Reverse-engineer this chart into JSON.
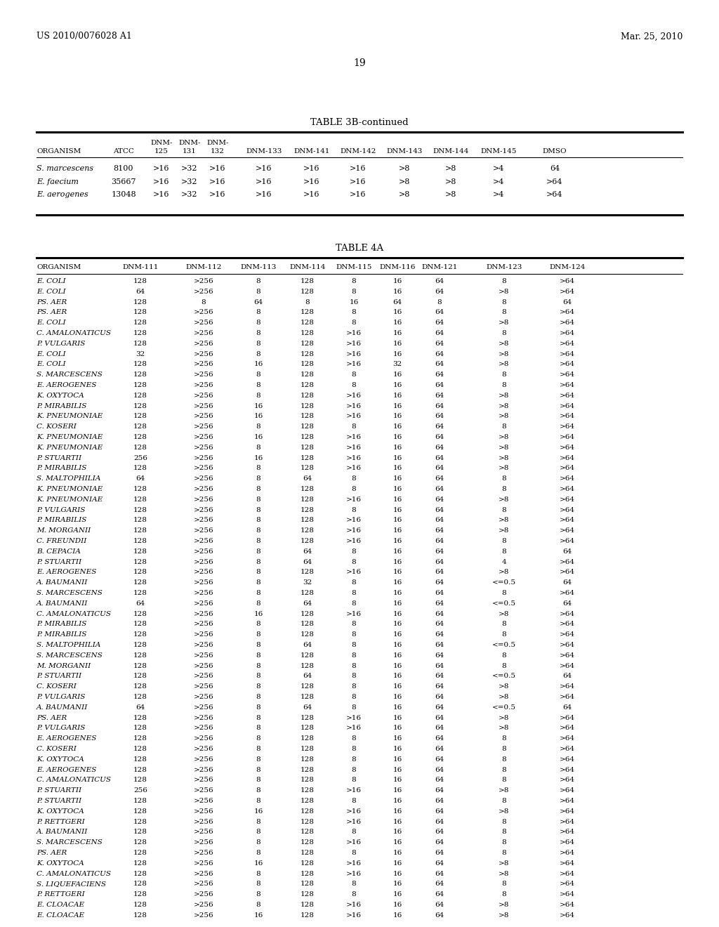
{
  "header_left": "US 2010/0076028 A1",
  "header_right": "Mar. 25, 2010",
  "page_number": "19",
  "table3b_title": "TABLE 3B-continued",
  "table3b_rows": [
    [
      "S. marcescens",
      "8100",
      ">16",
      ">32",
      ">16",
      ">16",
      ">16",
      ">16",
      ">8",
      ">8",
      ">4",
      "64"
    ],
    [
      "E. faecium",
      "35667",
      ">16",
      ">32",
      ">16",
      ">16",
      ">16",
      ">16",
      ">8",
      ">8",
      ">4",
      ">64"
    ],
    [
      "E. aerogenes",
      "13048",
      ">16",
      ">32",
      ">16",
      ">16",
      ">16",
      ">16",
      ">8",
      ">8",
      ">4",
      ">64"
    ]
  ],
  "table4a_title": "TABLE 4A",
  "table4a_col_headers": [
    "ORGANISM",
    "DNM-111",
    "DNM-112",
    "DNM-113",
    "DNM-114",
    "DNM-115",
    "DNM-116",
    "DNM-121",
    "DNM-123",
    "DNM-124"
  ],
  "table4a_rows": [
    [
      "E. COLI",
      "128",
      ">256",
      "8",
      "128",
      "8",
      "16",
      "64",
      "8",
      ">64"
    ],
    [
      "E. COLI",
      "64",
      ">256",
      "8",
      "128",
      "8",
      "16",
      "64",
      ">8",
      ">64"
    ],
    [
      "PS. AER",
      "128",
      "8",
      "64",
      "8",
      "16",
      "64",
      "8",
      "8",
      "64"
    ],
    [
      "PS. AER",
      "128",
      ">256",
      "8",
      "128",
      "8",
      "16",
      "64",
      "8",
      ">64"
    ],
    [
      "E. COLI",
      "128",
      ">256",
      "8",
      "128",
      "8",
      "16",
      "64",
      ">8",
      ">64"
    ],
    [
      "C. AMALONATICUS",
      "128",
      ">256",
      "8",
      "128",
      ">16",
      "16",
      "64",
      "8",
      ">64"
    ],
    [
      "P. VULGARIS",
      "128",
      ">256",
      "8",
      "128",
      ">16",
      "16",
      "64",
      ">8",
      ">64"
    ],
    [
      "E. COLI",
      "32",
      ">256",
      "8",
      "128",
      ">16",
      "16",
      "64",
      ">8",
      ">64"
    ],
    [
      "E. COLI",
      "128",
      ">256",
      "16",
      "128",
      ">16",
      "32",
      "64",
      ">8",
      ">64"
    ],
    [
      "S. MARCESCENS",
      "128",
      ">256",
      "8",
      "128",
      "8",
      "16",
      "64",
      "8",
      ">64"
    ],
    [
      "E. AEROGENES",
      "128",
      ">256",
      "8",
      "128",
      "8",
      "16",
      "64",
      "8",
      ">64"
    ],
    [
      "K. OXYTOCA",
      "128",
      ">256",
      "8",
      "128",
      ">16",
      "16",
      "64",
      ">8",
      ">64"
    ],
    [
      "P. MIRABILIS",
      "128",
      ">256",
      "16",
      "128",
      ">16",
      "16",
      "64",
      ">8",
      ">64"
    ],
    [
      "K. PNEUMONIAE",
      "128",
      ">256",
      "16",
      "128",
      ">16",
      "16",
      "64",
      ">8",
      ">64"
    ],
    [
      "C. KOSERI",
      "128",
      ">256",
      "8",
      "128",
      "8",
      "16",
      "64",
      "8",
      ">64"
    ],
    [
      "K. PNEUMONIAE",
      "128",
      ">256",
      "16",
      "128",
      ">16",
      "16",
      "64",
      ">8",
      ">64"
    ],
    [
      "K. PNEUMONIAE",
      "128",
      ">256",
      "8",
      "128",
      ">16",
      "16",
      "64",
      ">8",
      ">64"
    ],
    [
      "P. STUARTII",
      "256",
      ">256",
      "16",
      "128",
      ">16",
      "16",
      "64",
      ">8",
      ">64"
    ],
    [
      "P. MIRABILIS",
      "128",
      ">256",
      "8",
      "128",
      ">16",
      "16",
      "64",
      ">8",
      ">64"
    ],
    [
      "S. MALTOPHILIA",
      "64",
      ">256",
      "8",
      "64",
      "8",
      "16",
      "64",
      "8",
      ">64"
    ],
    [
      "K. PNEUMONIAE",
      "128",
      ">256",
      "8",
      "128",
      "8",
      "16",
      "64",
      "8",
      ">64"
    ],
    [
      "K. PNEUMONIAE",
      "128",
      ">256",
      "8",
      "128",
      ">16",
      "16",
      "64",
      ">8",
      ">64"
    ],
    [
      "P. VULGARIS",
      "128",
      ">256",
      "8",
      "128",
      "8",
      "16",
      "64",
      "8",
      ">64"
    ],
    [
      "P. MIRABILIS",
      "128",
      ">256",
      "8",
      "128",
      ">16",
      "16",
      "64",
      ">8",
      ">64"
    ],
    [
      "M. MORGANII",
      "128",
      ">256",
      "8",
      "128",
      ">16",
      "16",
      "64",
      ">8",
      ">64"
    ],
    [
      "C. FREUNDII",
      "128",
      ">256",
      "8",
      "128",
      ">16",
      "16",
      "64",
      "8",
      ">64"
    ],
    [
      "B. CEPACIA",
      "128",
      ">256",
      "8",
      "64",
      "8",
      "16",
      "64",
      "8",
      "64"
    ],
    [
      "P. STUARTII",
      "128",
      ">256",
      "8",
      "64",
      "8",
      "16",
      "64",
      "4",
      ">64"
    ],
    [
      "E. AEROGENES",
      "128",
      ">256",
      "8",
      "128",
      ">16",
      "16",
      "64",
      ">8",
      ">64"
    ],
    [
      "A. BAUMANII",
      "128",
      ">256",
      "8",
      "32",
      "8",
      "16",
      "64",
      "<=0.5",
      "64"
    ],
    [
      "S. MARCESCENS",
      "128",
      ">256",
      "8",
      "128",
      "8",
      "16",
      "64",
      "8",
      ">64"
    ],
    [
      "A. BAUMANII",
      "64",
      ">256",
      "8",
      "64",
      "8",
      "16",
      "64",
      "<=0.5",
      "64"
    ],
    [
      "C. AMALONATICUS",
      "128",
      ">256",
      "16",
      "128",
      ">16",
      "16",
      "64",
      ">8",
      ">64"
    ],
    [
      "P. MIRABILIS",
      "128",
      ">256",
      "8",
      "128",
      "8",
      "16",
      "64",
      "8",
      ">64"
    ],
    [
      "P. MIRABILIS",
      "128",
      ">256",
      "8",
      "128",
      "8",
      "16",
      "64",
      "8",
      ">64"
    ],
    [
      "S. MALTOPHILIA",
      "128",
      ">256",
      "8",
      "64",
      "8",
      "16",
      "64",
      "<=0.5",
      ">64"
    ],
    [
      "S. MARCESCENS",
      "128",
      ">256",
      "8",
      "128",
      "8",
      "16",
      "64",
      "8",
      ">64"
    ],
    [
      "M. MORGANII",
      "128",
      ">256",
      "8",
      "128",
      "8",
      "16",
      "64",
      "8",
      ">64"
    ],
    [
      "P. STUARTII",
      "128",
      ">256",
      "8",
      "64",
      "8",
      "16",
      "64",
      "<=0.5",
      "64"
    ],
    [
      "C. KOSERI",
      "128",
      ">256",
      "8",
      "128",
      "8",
      "16",
      "64",
      ">8",
      ">64"
    ],
    [
      "P. VULGARIS",
      "128",
      ">256",
      "8",
      "128",
      "8",
      "16",
      "64",
      ">8",
      ">64"
    ],
    [
      "A. BAUMANII",
      "64",
      ">256",
      "8",
      "64",
      "8",
      "16",
      "64",
      "<=0.5",
      "64"
    ],
    [
      "PS. AER",
      "128",
      ">256",
      "8",
      "128",
      ">16",
      "16",
      "64",
      ">8",
      ">64"
    ],
    [
      "P. VULGARIS",
      "128",
      ">256",
      "8",
      "128",
      ">16",
      "16",
      "64",
      ">8",
      ">64"
    ],
    [
      "E. AEROGENES",
      "128",
      ">256",
      "8",
      "128",
      "8",
      "16",
      "64",
      "8",
      ">64"
    ],
    [
      "C. KOSERI",
      "128",
      ">256",
      "8",
      "128",
      "8",
      "16",
      "64",
      "8",
      ">64"
    ],
    [
      "K. OXYTOCA",
      "128",
      ">256",
      "8",
      "128",
      "8",
      "16",
      "64",
      "8",
      ">64"
    ],
    [
      "E. AEROGENES",
      "128",
      ">256",
      "8",
      "128",
      "8",
      "16",
      "64",
      "8",
      ">64"
    ],
    [
      "C. AMALONATICUS",
      "128",
      ">256",
      "8",
      "128",
      "8",
      "16",
      "64",
      "8",
      ">64"
    ],
    [
      "P. STUARTII",
      "256",
      ">256",
      "8",
      "128",
      ">16",
      "16",
      "64",
      ">8",
      ">64"
    ],
    [
      "P. STUARTII",
      "128",
      ">256",
      "8",
      "128",
      "8",
      "16",
      "64",
      "8",
      ">64"
    ],
    [
      "K. OXYTOCA",
      "128",
      ">256",
      "16",
      "128",
      ">16",
      "16",
      "64",
      ">8",
      ">64"
    ],
    [
      "P. RETTGERI",
      "128",
      ">256",
      "8",
      "128",
      ">16",
      "16",
      "64",
      "8",
      ">64"
    ],
    [
      "A. BAUMANII",
      "128",
      ">256",
      "8",
      "128",
      "8",
      "16",
      "64",
      "8",
      ">64"
    ],
    [
      "S. MARCESCENS",
      "128",
      ">256",
      "8",
      "128",
      ">16",
      "16",
      "64",
      "8",
      ">64"
    ],
    [
      "PS. AER",
      "128",
      ">256",
      "8",
      "128",
      "8",
      "16",
      "64",
      "8",
      ">64"
    ],
    [
      "K. OXYTOCA",
      "128",
      ">256",
      "16",
      "128",
      ">16",
      "16",
      "64",
      ">8",
      ">64"
    ],
    [
      "C. AMALONATICUS",
      "128",
      ">256",
      "8",
      "128",
      ">16",
      "16",
      "64",
      ">8",
      ">64"
    ],
    [
      "S. LIQUEFACIENS",
      "128",
      ">256",
      "8",
      "128",
      "8",
      "16",
      "64",
      "8",
      ">64"
    ],
    [
      "P. RETTGERI",
      "128",
      ">256",
      "8",
      "128",
      "8",
      "16",
      "64",
      "8",
      ">64"
    ],
    [
      "E. CLOACAE",
      "128",
      ">256",
      "8",
      "128",
      ">16",
      "16",
      "64",
      ">8",
      ">64"
    ],
    [
      "E. CLOACAE",
      "128",
      ">256",
      "16",
      "128",
      ">16",
      "16",
      "64",
      ">8",
      ">64"
    ]
  ],
  "bg_color": "#ffffff",
  "text_color": "#000000",
  "lw_thick": 2.2,
  "lw_thin": 0.8,
  "font_size_header": 9.0,
  "font_size_table": 7.5,
  "font_size_title": 9.5,
  "font_size_page": 10.0
}
